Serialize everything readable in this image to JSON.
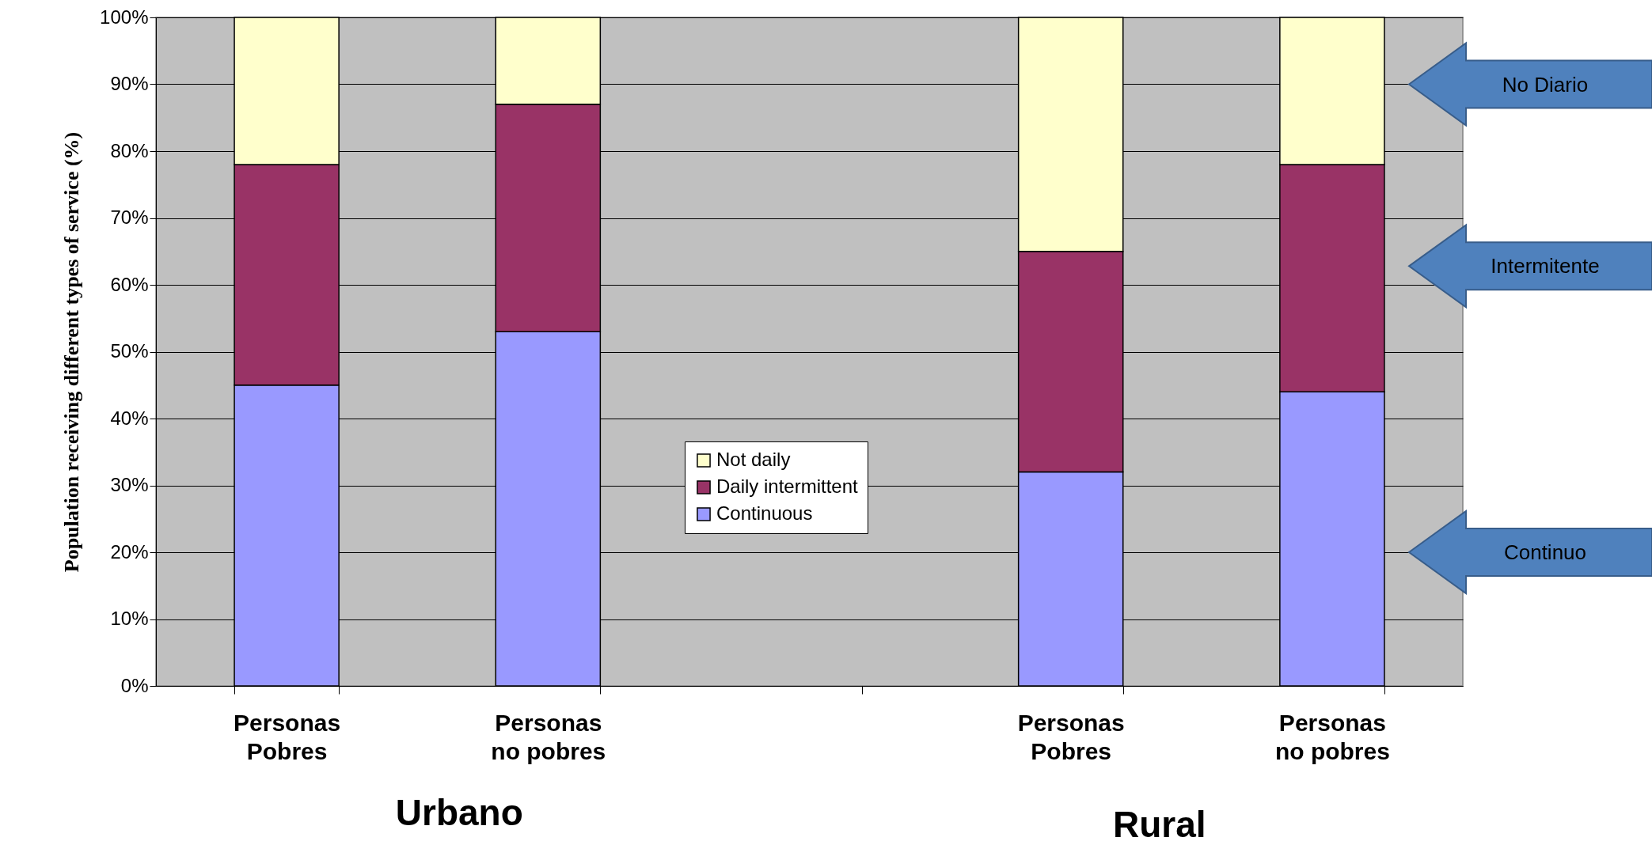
{
  "chart_data": {
    "type": "bar",
    "stacked": true,
    "ylabel": "Population receiving different types of service (%)",
    "categories": [
      "Personas\nPobres",
      "Personas\nno pobres",
      null,
      "Personas\nPobres",
      "Personas\nno pobres"
    ],
    "series": [
      {
        "name": "Continuous",
        "color": "#9999ff",
        "values": [
          45,
          53,
          null,
          32,
          44
        ]
      },
      {
        "name": "Daily intermittent",
        "color": "#993366",
        "values": [
          33,
          34,
          null,
          33,
          34
        ]
      },
      {
        "name": "Not daily",
        "color": "#ffffcc",
        "values": [
          22,
          13,
          null,
          35,
          22
        ]
      }
    ],
    "ylim": [
      0,
      100
    ],
    "yticks": [
      {
        "value": 0,
        "label": "0%"
      },
      {
        "value": 10,
        "label": "10%"
      },
      {
        "value": 20,
        "label": "20%"
      },
      {
        "value": 30,
        "label": "30%"
      },
      {
        "value": 40,
        "label": "40%"
      },
      {
        "value": 50,
        "label": "50%"
      },
      {
        "value": 60,
        "label": "60%"
      },
      {
        "value": 70,
        "label": "70%"
      },
      {
        "value": 80,
        "label": "80%"
      },
      {
        "value": 90,
        "label": "90%"
      },
      {
        "value": 100,
        "label": "100%"
      }
    ],
    "grid": "y",
    "legend": "bottom",
    "annotations": [
      "Urbano",
      "Rural",
      "No Diario",
      "Intermitente",
      "Continuo"
    ]
  }
}
